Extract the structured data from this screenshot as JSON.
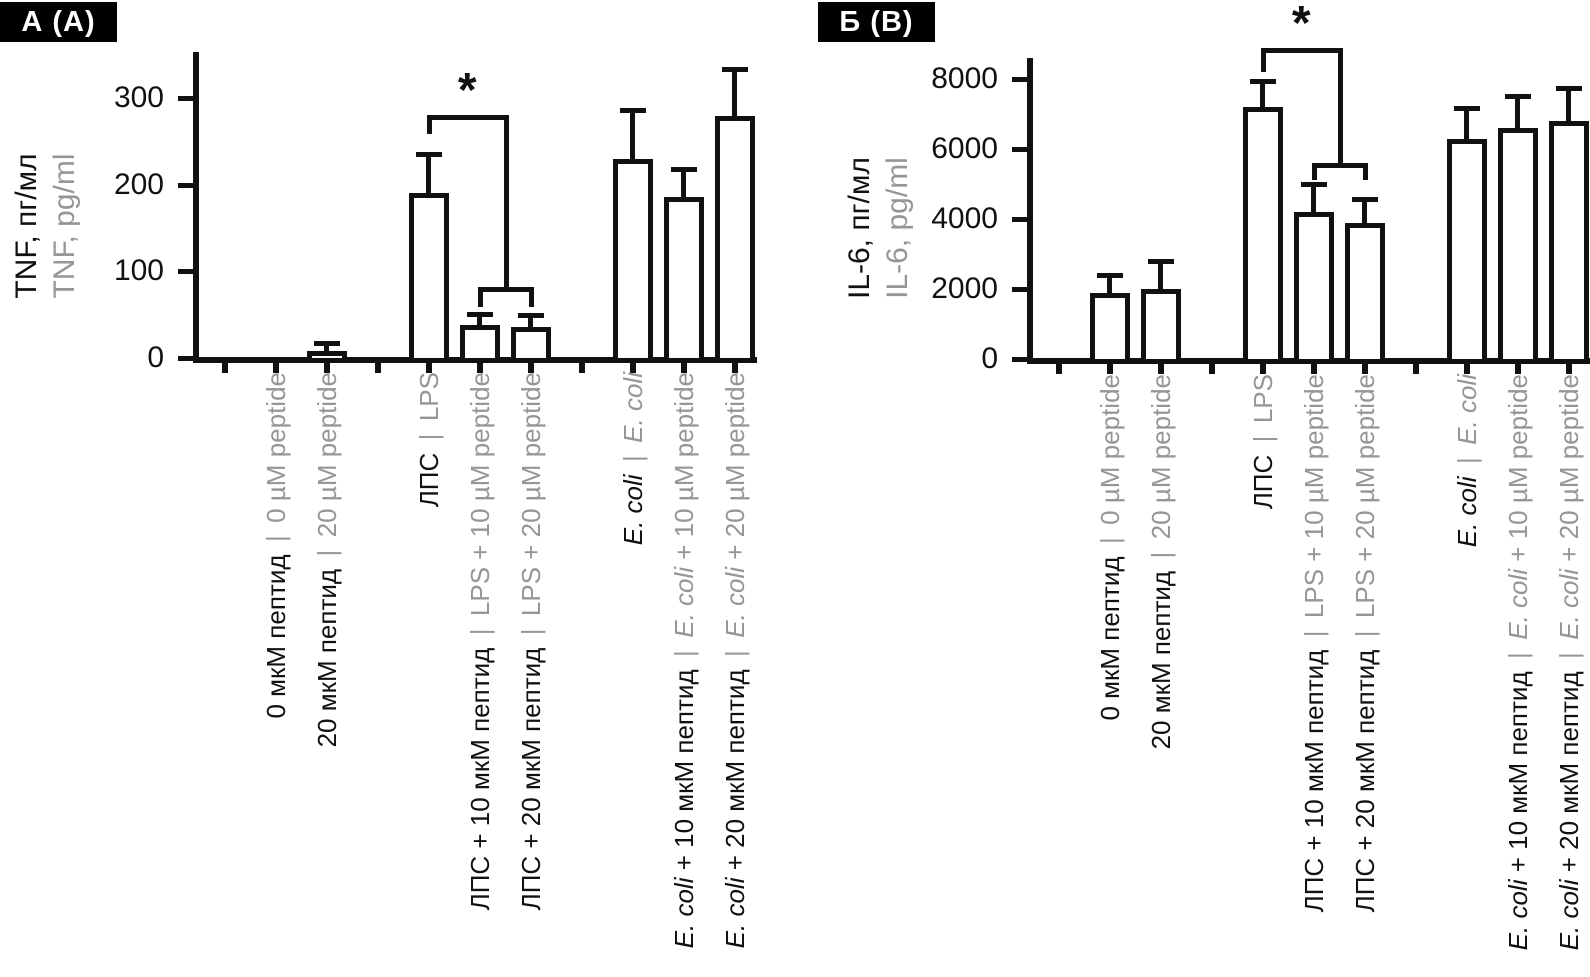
{
  "colors": {
    "primary_ink": "#111111",
    "secondary_gray": "#969696",
    "bar_fill": "#ffffff"
  },
  "figure": {
    "panels": [
      {
        "panel_tag": "А (A)",
        "ylabel_ru": "TNF, пг/мл",
        "ylabel_en": "TNF, pg/ml",
        "chart_data": {
          "type": "bar",
          "title": "",
          "xlabel": "",
          "ylabel": "TNF, пг/мл | TNF, pg/ml",
          "ylim": [
            0,
            353
          ],
          "yticks": [
            0,
            100,
            200,
            300
          ],
          "grid": false,
          "legend": null,
          "bar_fill": "#ffffff",
          "bar_border": "#111111",
          "separator": "|",
          "categories": [
            {
              "ru": "0 мкМ пептид",
              "en": "0 µM peptide",
              "italic": null
            },
            {
              "ru": "20 мкМ пептид",
              "en": "20 µM peptide",
              "italic": null
            },
            {
              "ru": "ЛПС",
              "en": "LPS",
              "italic": null
            },
            {
              "ru": "ЛПС + 10 мкМ пептид",
              "en": "LPS + 10 µM peptide",
              "italic": null
            },
            {
              "ru": "ЛПС + 20 мкМ пептид",
              "en": "LPS + 20 µM peptide",
              "italic": null
            },
            {
              "ru": "E. coli",
              "en": "E. coli",
              "italic": "E. coli"
            },
            {
              "ru": "E. coli + 10 мкМ пептид",
              "en": "E. coli + 10 µM peptide",
              "italic": "E. coli"
            },
            {
              "ru": "E. coli + 20 мкМ пептид",
              "en": "E. coli + 20 µM peptide",
              "italic": "E. coli"
            }
          ],
          "values": [
            0,
            8,
            190,
            38,
            36,
            230,
            186,
            279
          ],
          "error_plus": [
            0,
            12,
            48,
            15,
            16,
            59,
            35,
            57
          ],
          "significance": {
            "label": "*",
            "from_index": 2,
            "to_indices": [
              3,
              4
            ],
            "bracket_top_y": 280,
            "left_stub_to_y": 258,
            "pair_bracket_y": 82,
            "pair_stub_to_y": 65
          }
        }
      },
      {
        "panel_tag": "Б (B)",
        "ylabel_ru": "IL-6, пг/мл",
        "ylabel_en": "IL-6, pg/ml",
        "chart_data": {
          "type": "bar",
          "title": "",
          "xlabel": "",
          "ylabel": "IL-6, пг/мл | IL-6, pg/ml",
          "ylim": [
            0,
            8600
          ],
          "yticks": [
            0,
            2000,
            4000,
            6000,
            8000
          ],
          "grid": false,
          "legend": null,
          "bar_fill": "#ffffff",
          "bar_border": "#111111",
          "separator": "|",
          "categories": [
            {
              "ru": "0 мкМ пептид",
              "en": "0 µM peptide",
              "italic": null
            },
            {
              "ru": "20 мкМ пептид",
              "en": "20 µM peptide",
              "italic": null
            },
            {
              "ru": "ЛПС",
              "en": "LPS",
              "italic": null
            },
            {
              "ru": "ЛПС + 10 мкМ пептид",
              "en": "LPS + 10 µM peptide",
              "italic": null
            },
            {
              "ru": "ЛПС + 20 мкМ пептид",
              "en": "LPS + 20 µM peptide",
              "italic": null
            },
            {
              "ru": "E. coli",
              "en": "E. coli",
              "italic": "E. coli"
            },
            {
              "ru": "E. coli + 10 мкМ пептид",
              "en": "E. coli + 10 µM peptide",
              "italic": "E. coli"
            },
            {
              "ru": "E. coli + 20 мкМ пептид",
              "en": "E. coli + 20 µM peptide",
              "italic": "E. coli"
            }
          ],
          "values": [
            1900,
            2000,
            7200,
            4200,
            3900,
            6300,
            6600,
            6800
          ],
          "error_plus": [
            550,
            850,
            800,
            850,
            740,
            930,
            960,
            1010
          ],
          "significance": {
            "label": "*",
            "from_index": 2,
            "to_indices": [
              3,
              4
            ],
            "bracket_top_y": 8900,
            "left_stub_to_y": 8200,
            "pair_bracket_y": 5600,
            "pair_stub_to_y": 5260
          }
        }
      }
    ]
  }
}
